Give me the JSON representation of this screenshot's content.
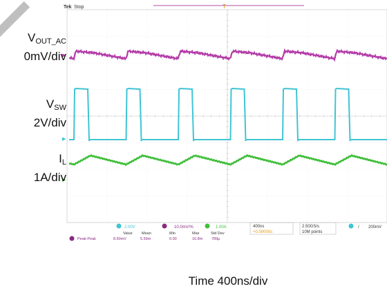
{
  "scope": {
    "brand": "Tek",
    "status": "Stop",
    "trigger_marker": "T"
  },
  "channel_labels": [
    {
      "main": "V",
      "sub": "OUT_AC",
      "scale": "0mV/div"
    },
    {
      "main": "V",
      "sub": "SW",
      "scale": "2V/div"
    },
    {
      "main": "I",
      "sub": "L",
      "scale": "1A/div"
    }
  ],
  "waveforms": {
    "vout_ac": {
      "color": "#b43ba8"
    },
    "vsw": {
      "color": "#3fc4d4"
    },
    "il": {
      "color": "#3fbf3a"
    }
  },
  "readout": {
    "ch2_scale": "2.00V",
    "math_scale": "10.0mV/%",
    "ch4_scale": "1.00A",
    "timebase": "400ns",
    "delay": "+0.00000s",
    "sample_rate": "2.50GS/s",
    "record_length": "10M points",
    "trigger_level": "200mV",
    "stats_headers": [
      "Value",
      "Mean",
      "Min",
      "Max",
      "Std Dev"
    ],
    "stats_row": {
      "label": "Peak-Peak",
      "values": [
        "8.60mV",
        "5.59m",
        "0.00",
        "16.8m",
        "789µ"
      ]
    }
  },
  "time_label": "Time 400ns/div"
}
